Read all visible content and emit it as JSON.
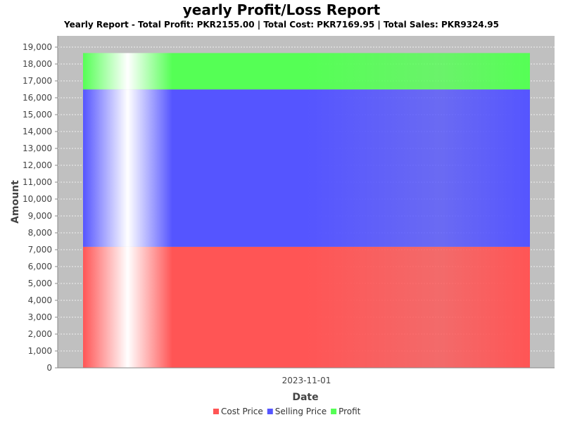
{
  "colors": {
    "plot_background": "#c0c0c0",
    "gridline": "#ffffff",
    "cost": "#ff5555",
    "selling": "#5555ff",
    "profit": "#55ff55"
  },
  "chart_data": {
    "type": "bar",
    "stacked": true,
    "title": "yearly Profit/Loss Report",
    "subtitle": "Yearly Report - Total Profit: PKR2155.00 | Total Cost: PKR7169.95 | Total Sales: PKR9324.95",
    "xlabel": "Date",
    "ylabel": "Amount",
    "categories": [
      "2023-11-01"
    ],
    "series": [
      {
        "name": "Cost Price",
        "values": [
          7169.95
        ],
        "color": "#ff5555"
      },
      {
        "name": "Selling Price",
        "values": [
          9324.95
        ],
        "color": "#5555ff"
      },
      {
        "name": "Profit",
        "values": [
          2155.0
        ],
        "color": "#55ff55"
      }
    ],
    "ylim": [
      0,
      19000
    ],
    "yticks": [
      0,
      1000,
      2000,
      3000,
      4000,
      5000,
      6000,
      7000,
      8000,
      9000,
      10000,
      11000,
      12000,
      13000,
      14000,
      15000,
      16000,
      17000,
      18000,
      19000
    ],
    "ytick_labels": [
      "0",
      "1,000",
      "2,000",
      "3,000",
      "4,000",
      "5,000",
      "6,000",
      "7,000",
      "8,000",
      "9,000",
      "10,000",
      "11,000",
      "12,000",
      "13,000",
      "14,000",
      "15,000",
      "16,000",
      "17,000",
      "18,000",
      "19,000"
    ],
    "grid": true,
    "legend_position": "bottom"
  }
}
